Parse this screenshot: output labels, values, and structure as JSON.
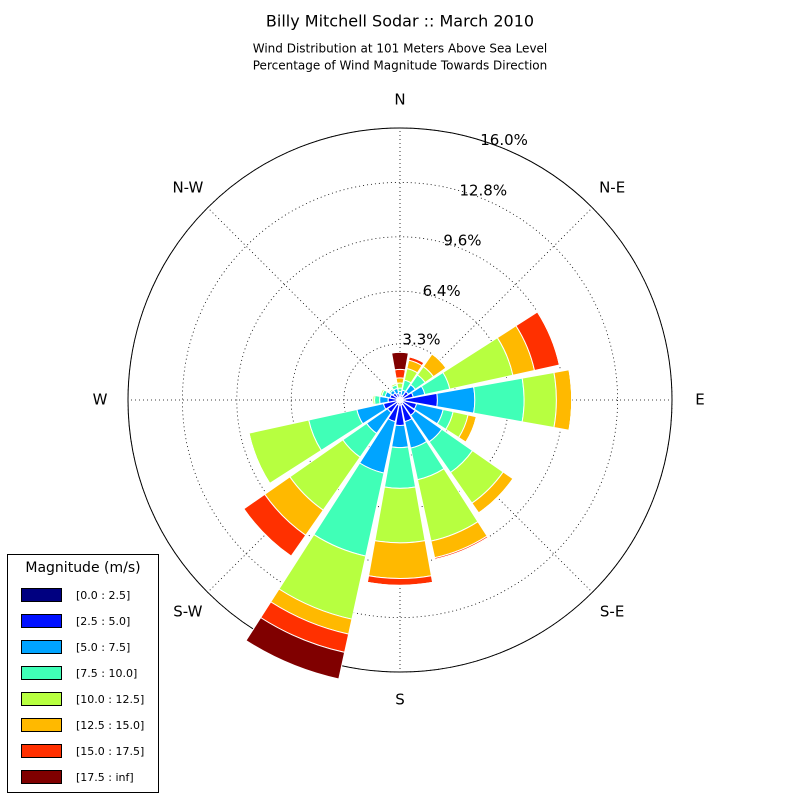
{
  "chart_data": {
    "type": "windrose",
    "title": "Billy Mitchell Sodar :: March 2010",
    "subtitle": [
      "Wind Distribution at 101 Meters Above Sea Level",
      "Percentage of Wind Magnitude Towards Direction"
    ],
    "categories": [
      "N",
      null,
      "N-E",
      null,
      "E",
      null,
      "S-E",
      null,
      "S",
      null,
      "S-W",
      null,
      "W",
      null,
      "N-W",
      null
    ],
    "rlim": [
      0,
      16
    ],
    "rticks": [
      {
        "value": 3.3,
        "label": "3.3%"
      },
      {
        "value": 6.4,
        "label": "6.4%"
      },
      {
        "value": 9.6,
        "label": "9.6%"
      },
      {
        "value": 12.8,
        "label": "12.8%"
      },
      {
        "value": 16.0,
        "label": "16.0%"
      }
    ],
    "grid": true,
    "legend_title": "Magnitude (m/s)",
    "legend_position": "lower left",
    "series": [
      {
        "name": "[0.0 : 2.5]",
        "color": "#000080",
        "values": [
          0.1,
          0.1,
          0.2,
          0.2,
          0.3,
          0.2,
          0.2,
          0.3,
          0.3,
          0.3,
          0.2,
          0.2,
          0.2,
          0.2,
          0.2,
          0.1
        ]
      },
      {
        "name": "[2.5 : 5.0]",
        "color": "#0010ff",
        "values": [
          0.2,
          0.2,
          0.4,
          0.6,
          1.9,
          0.8,
          0.9,
          1.0,
          1.2,
          1.0,
          0.7,
          0.8,
          0.5,
          0.4,
          0.3,
          0.3
        ]
      },
      {
        "name": "[5.0 : 7.5]",
        "color": "#00a4ff",
        "values": [
          0.2,
          0.3,
          0.5,
          0.7,
          2.2,
          1.6,
          1.9,
          1.6,
          1.3,
          3.1,
          1.5,
          1.6,
          0.5,
          0.3,
          0.2,
          0.3
        ]
      },
      {
        "name": "[7.5 : 10.0]",
        "color": "#40ffb7",
        "values": [
          0.2,
          0.6,
          0.7,
          1.5,
          2.9,
          0.6,
          2.2,
          1.9,
          2.4,
          5.0,
          1.7,
          2.9,
          0.3,
          0.2,
          0.1,
          0.2
        ]
      },
      {
        "name": "[10.0 : 12.5]",
        "color": "#b7ff40",
        "values": [
          0.3,
          0.7,
          0.6,
          3.8,
          1.9,
          0.9,
          2.2,
          3.7,
          3.2,
          3.8,
          3.8,
          3.6,
          0.1,
          0.1,
          0,
          0.1
        ]
      },
      {
        "name": "[12.5 : 15.0]",
        "color": "#ffb900",
        "values": [
          0.3,
          0.5,
          0.9,
          1.3,
          0.9,
          0.5,
          0.7,
          1.0,
          2.1,
          0.9,
          1.8,
          0,
          0,
          0,
          0,
          0
        ]
      },
      {
        "name": "[15.0 : 17.5]",
        "color": "#ff3000",
        "values": [
          0.5,
          0.2,
          0,
          1.5,
          0,
          0,
          0,
          0.1,
          0.4,
          1.1,
          1.5,
          0,
          0,
          0,
          0,
          0
        ]
      },
      {
        "name": "[17.5 : inf]",
        "color": "#800000",
        "values": [
          1.0,
          0,
          0,
          0,
          0,
          0,
          0,
          0,
          0,
          1.6,
          0,
          0,
          0,
          0,
          0,
          0
        ]
      }
    ]
  }
}
